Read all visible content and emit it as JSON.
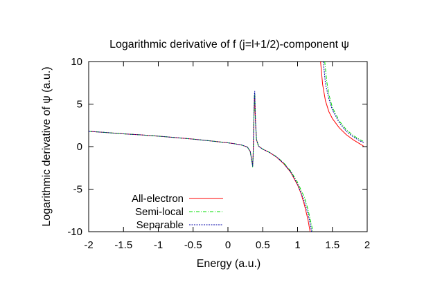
{
  "chart_data": {
    "type": "line",
    "title": "Logarithmic derivative of f (j=l+1/2)-component ψ",
    "xlabel": "Energy (a.u.)",
    "ylabel": "Logarithmic derivative of ψ (a.u.)",
    "xlim": [
      -2,
      2
    ],
    "ylim": [
      -10,
      10
    ],
    "xticks": [
      -2,
      -1.5,
      -1,
      -0.5,
      0,
      0.5,
      1,
      1.5,
      2
    ],
    "xtick_labels": [
      "-2",
      "-1.5",
      "-1",
      "-0.5",
      "0",
      "0.5",
      "1",
      "1.5",
      "2"
    ],
    "yticks": [
      -10,
      -5,
      0,
      5,
      10
    ],
    "ytick_labels": [
      "-10",
      "-5",
      "0",
      "5",
      "10"
    ],
    "grid": false,
    "legend_position": "bottom-left",
    "series": [
      {
        "name": "All-electron",
        "color": "#ff0000",
        "dash": "solid",
        "segments": [
          [
            [
              -2.0,
              1.8
            ],
            [
              -1.75,
              1.66
            ],
            [
              -1.5,
              1.5
            ],
            [
              -1.25,
              1.38
            ],
            [
              -1.0,
              1.23
            ],
            [
              -0.75,
              1.06
            ],
            [
              -0.5,
              0.88
            ],
            [
              -0.25,
              0.67
            ],
            [
              0.0,
              0.45
            ],
            [
              0.1,
              0.33
            ],
            [
              0.2,
              0.18
            ],
            [
              0.28,
              -0.05
            ],
            [
              0.32,
              -0.55
            ],
            [
              0.345,
              -1.7
            ],
            [
              0.355,
              -2.2
            ],
            [
              0.362,
              -1.0
            ],
            [
              0.37,
              2.0
            ],
            [
              0.38,
              5.7
            ],
            [
              0.385,
              6.0
            ],
            [
              0.395,
              3.0
            ],
            [
              0.41,
              0.8
            ],
            [
              0.44,
              0.05
            ],
            [
              0.5,
              -0.3
            ],
            [
              0.6,
              -0.7
            ],
            [
              0.7,
              -1.25
            ],
            [
              0.8,
              -2.0
            ],
            [
              0.9,
              -3.0
            ],
            [
              1.0,
              -4.5
            ],
            [
              1.05,
              -5.5
            ],
            [
              1.1,
              -6.9
            ],
            [
              1.15,
              -8.6
            ],
            [
              1.18,
              -10.0
            ]
          ],
          [
            [
              1.33,
              10.0
            ],
            [
              1.36,
              7.3
            ],
            [
              1.4,
              5.4
            ],
            [
              1.45,
              4.1
            ],
            [
              1.5,
              3.3
            ],
            [
              1.6,
              2.2
            ],
            [
              1.7,
              1.4
            ],
            [
              1.8,
              0.8
            ],
            [
              1.9,
              0.3
            ],
            [
              1.95,
              0.05
            ]
          ]
        ]
      },
      {
        "name": "Semi-local",
        "color": "#00dd00",
        "dash": "long",
        "segments": [
          [
            [
              -2.0,
              1.8
            ],
            [
              -1.75,
              1.66
            ],
            [
              -1.5,
              1.5
            ],
            [
              -1.25,
              1.38
            ],
            [
              -1.0,
              1.23
            ],
            [
              -0.75,
              1.06
            ],
            [
              -0.5,
              0.88
            ],
            [
              -0.25,
              0.67
            ],
            [
              0.0,
              0.45
            ],
            [
              0.1,
              0.33
            ],
            [
              0.2,
              0.18
            ],
            [
              0.28,
              -0.05
            ],
            [
              0.32,
              -0.6
            ],
            [
              0.345,
              -1.8
            ],
            [
              0.355,
              -2.4
            ],
            [
              0.362,
              -1.1
            ],
            [
              0.37,
              2.1
            ],
            [
              0.38,
              6.0
            ],
            [
              0.385,
              6.3
            ],
            [
              0.395,
              3.2
            ],
            [
              0.41,
              0.85
            ],
            [
              0.44,
              0.05
            ],
            [
              0.5,
              -0.3
            ],
            [
              0.6,
              -0.68
            ],
            [
              0.7,
              -1.2
            ],
            [
              0.8,
              -1.9
            ],
            [
              0.9,
              -2.85
            ],
            [
              1.0,
              -4.2
            ],
            [
              1.1,
              -6.0
            ],
            [
              1.15,
              -7.4
            ],
            [
              1.2,
              -9.2
            ],
            [
              1.22,
              -10.0
            ]
          ],
          [
            [
              1.39,
              10.0
            ],
            [
              1.42,
              7.6
            ],
            [
              1.45,
              6.1
            ],
            [
              1.5,
              4.6
            ],
            [
              1.6,
              3.0
            ],
            [
              1.7,
              2.0
            ],
            [
              1.8,
              1.3
            ],
            [
              1.9,
              0.8
            ],
            [
              1.95,
              0.6
            ]
          ]
        ]
      },
      {
        "name": "Separable",
        "color": "#0000aa",
        "dash": "dotted",
        "segments": [
          [
            [
              -2.0,
              1.8
            ],
            [
              -1.75,
              1.66
            ],
            [
              -1.5,
              1.5
            ],
            [
              -1.25,
              1.38
            ],
            [
              -1.0,
              1.23
            ],
            [
              -0.75,
              1.06
            ],
            [
              -0.5,
              0.88
            ],
            [
              -0.25,
              0.67
            ],
            [
              0.0,
              0.45
            ],
            [
              0.1,
              0.33
            ],
            [
              0.2,
              0.18
            ],
            [
              0.28,
              -0.05
            ],
            [
              0.32,
              -0.58
            ],
            [
              0.345,
              -1.75
            ],
            [
              0.355,
              -2.3
            ],
            [
              0.362,
              -1.05
            ],
            [
              0.37,
              2.05
            ],
            [
              0.38,
              6.1
            ],
            [
              0.385,
              6.5
            ],
            [
              0.395,
              3.1
            ],
            [
              0.41,
              0.82
            ],
            [
              0.44,
              0.05
            ],
            [
              0.5,
              -0.3
            ],
            [
              0.6,
              -0.7
            ],
            [
              0.7,
              -1.22
            ],
            [
              0.8,
              -1.95
            ],
            [
              0.9,
              -2.95
            ],
            [
              1.0,
              -4.4
            ],
            [
              1.1,
              -6.5
            ],
            [
              1.15,
              -7.9
            ],
            [
              1.19,
              -9.4
            ],
            [
              1.2,
              -10.0
            ]
          ],
          [
            [
              1.37,
              10.0
            ],
            [
              1.4,
              7.4
            ],
            [
              1.45,
              5.6
            ],
            [
              1.5,
              4.3
            ],
            [
              1.6,
              2.8
            ],
            [
              1.7,
              1.8
            ],
            [
              1.8,
              1.15
            ],
            [
              1.9,
              0.65
            ],
            [
              1.95,
              0.5
            ]
          ]
        ]
      }
    ]
  }
}
